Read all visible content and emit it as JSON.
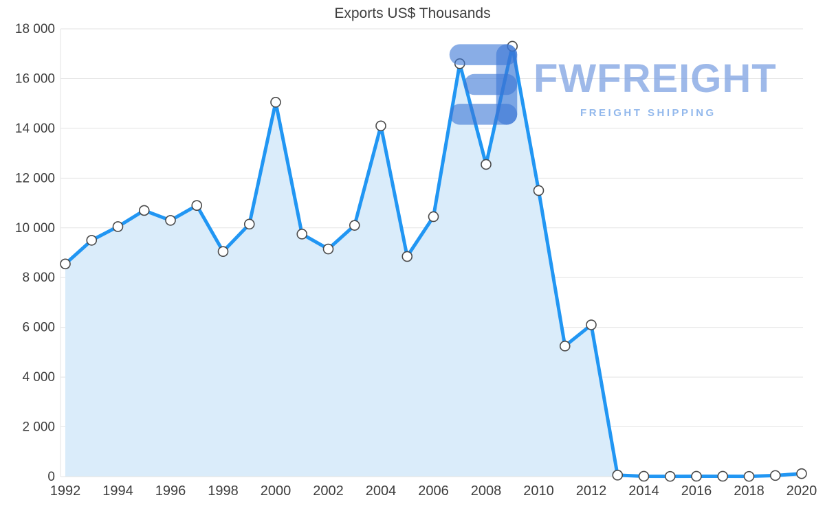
{
  "chart_data": {
    "type": "area",
    "title": "Exports US$ Thousands",
    "x": [
      1992,
      1993,
      1994,
      1995,
      1996,
      1997,
      1998,
      1999,
      2000,
      2001,
      2002,
      2003,
      2004,
      2005,
      2006,
      2007,
      2008,
      2009,
      2010,
      2011,
      2012,
      2013,
      2014,
      2015,
      2016,
      2017,
      2018,
      2019,
      2020
    ],
    "values": [
      8550,
      9500,
      10050,
      10700,
      10300,
      10900,
      9050,
      10150,
      15050,
      9750,
      9150,
      10100,
      14100,
      8850,
      10450,
      16600,
      12550,
      17300,
      11500,
      5250,
      6100,
      60,
      15,
      10,
      15,
      15,
      10,
      45,
      120
    ],
    "ylim": [
      0,
      18000
    ],
    "ytick_labels": [
      "0",
      "2 000",
      "4 000",
      "6 000",
      "8 000",
      "10 000",
      "12 000",
      "14 000",
      "16 000",
      "18 000"
    ],
    "xtick_labels": [
      "1992",
      "1994",
      "1996",
      "1998",
      "2000",
      "2002",
      "2004",
      "2006",
      "2008",
      "2010",
      "2012",
      "2014",
      "2016",
      "2018",
      "2020"
    ],
    "xtick_every": 2,
    "grid": true,
    "legend": "none",
    "colors": {
      "line": "#2196f3",
      "area": "#daecfa",
      "marker_fill": "#ffffff",
      "marker_stroke": "#4a4a4a",
      "grid": "#e3e3e3",
      "axis_text": "#3c3c3c",
      "title_text": "#3f3f3f"
    }
  },
  "watermark": {
    "brand": "FWFREIGHT",
    "tagline": "FREIGHT SHIPPING",
    "logo": "fwfreight-logo",
    "logo_color": "rgba(58,118,214,0.6)"
  }
}
